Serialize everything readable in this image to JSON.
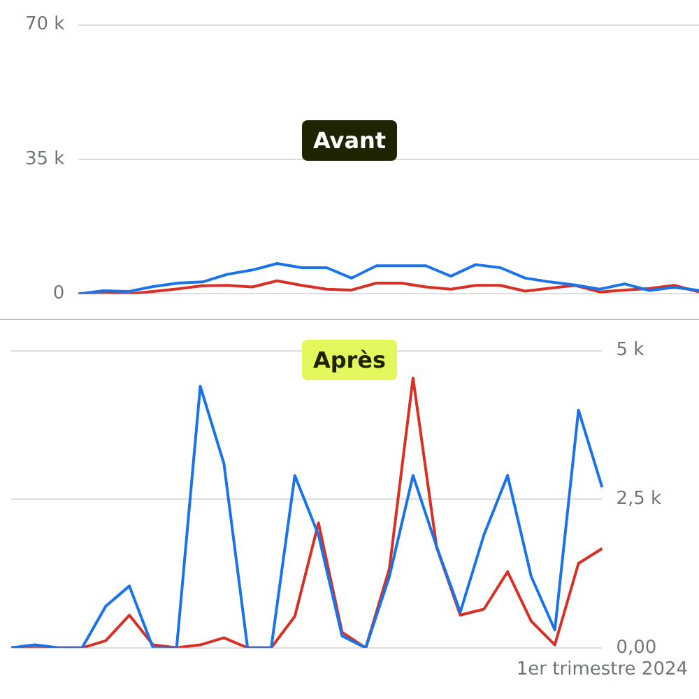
{
  "chart_data": [
    {
      "type": "line",
      "title": "Avant",
      "categories": [
        null,
        null,
        null,
        null,
        null,
        null,
        null,
        null,
        null,
        null,
        null,
        null,
        null,
        null,
        null,
        null,
        null,
        null,
        null,
        null,
        null,
        null,
        null,
        null,
        null,
        null
      ],
      "series": [
        {
          "color": "#1a73e8",
          "values": [
            0,
            800,
            600,
            1900,
            2800,
            3100,
            5100,
            6200,
            7900,
            6800,
            6800,
            4100,
            7300,
            7300,
            7300,
            4600,
            7600,
            6800,
            4100,
            3100,
            2300,
            1200,
            2600,
            900,
            1700,
            900
          ]
        },
        {
          "color": "#d93025",
          "values": [
            0,
            400,
            0,
            600,
            1300,
            2100,
            2200,
            1800,
            3400,
            2200,
            1200,
            1000,
            2800,
            2800,
            1800,
            1200,
            2200,
            2200,
            700,
            1500,
            2200,
            500,
            1000,
            1400,
            2200,
            500
          ]
        }
      ],
      "ylim": [
        0,
        70000
      ],
      "yticks": [
        {
          "value": 0,
          "label": "0"
        },
        {
          "value": 35000,
          "label": "35 k"
        },
        {
          "value": 70000,
          "label": "70 k"
        }
      ],
      "grid": "y",
      "marker": "none",
      "tick_labels": "y"
    },
    {
      "type": "line",
      "title": "Après",
      "categories": [
        null,
        null,
        null,
        null,
        null,
        null,
        null,
        null,
        null,
        null,
        null,
        null,
        null,
        null,
        null,
        null,
        null,
        null,
        null,
        null,
        null,
        null,
        null,
        null,
        null,
        "1er trimestre 2024"
      ],
      "series": [
        {
          "color": "#1a73e8",
          "axis": "y2",
          "values": [
            0,
            50,
            0,
            0,
            700,
            1040,
            0,
            0,
            4400,
            3100,
            0,
            0,
            2900,
            1900,
            200,
            0,
            1200,
            2900,
            1700,
            600,
            1900,
            2900,
            1200,
            300,
            4000,
            2700
          ]
        },
        {
          "color": "#d93025",
          "axis": "y2",
          "values": [
            0,
            0,
            0,
            0,
            120,
            550,
            50,
            0,
            50,
            170,
            0,
            0,
            530,
            2100,
            260,
            0,
            1330,
            4540,
            1690,
            550,
            650,
            1280,
            450,
            50,
            1420,
            1670
          ]
        }
      ],
      "y2lim": [
        0,
        5000
      ],
      "y2ticks": [
        {
          "value": 0,
          "label": "0,00"
        },
        {
          "value": 2500,
          "label": "2,5 k"
        },
        {
          "value": 5000,
          "label": "5 k"
        }
      ],
      "grid": "y",
      "marker": "none"
    }
  ]
}
